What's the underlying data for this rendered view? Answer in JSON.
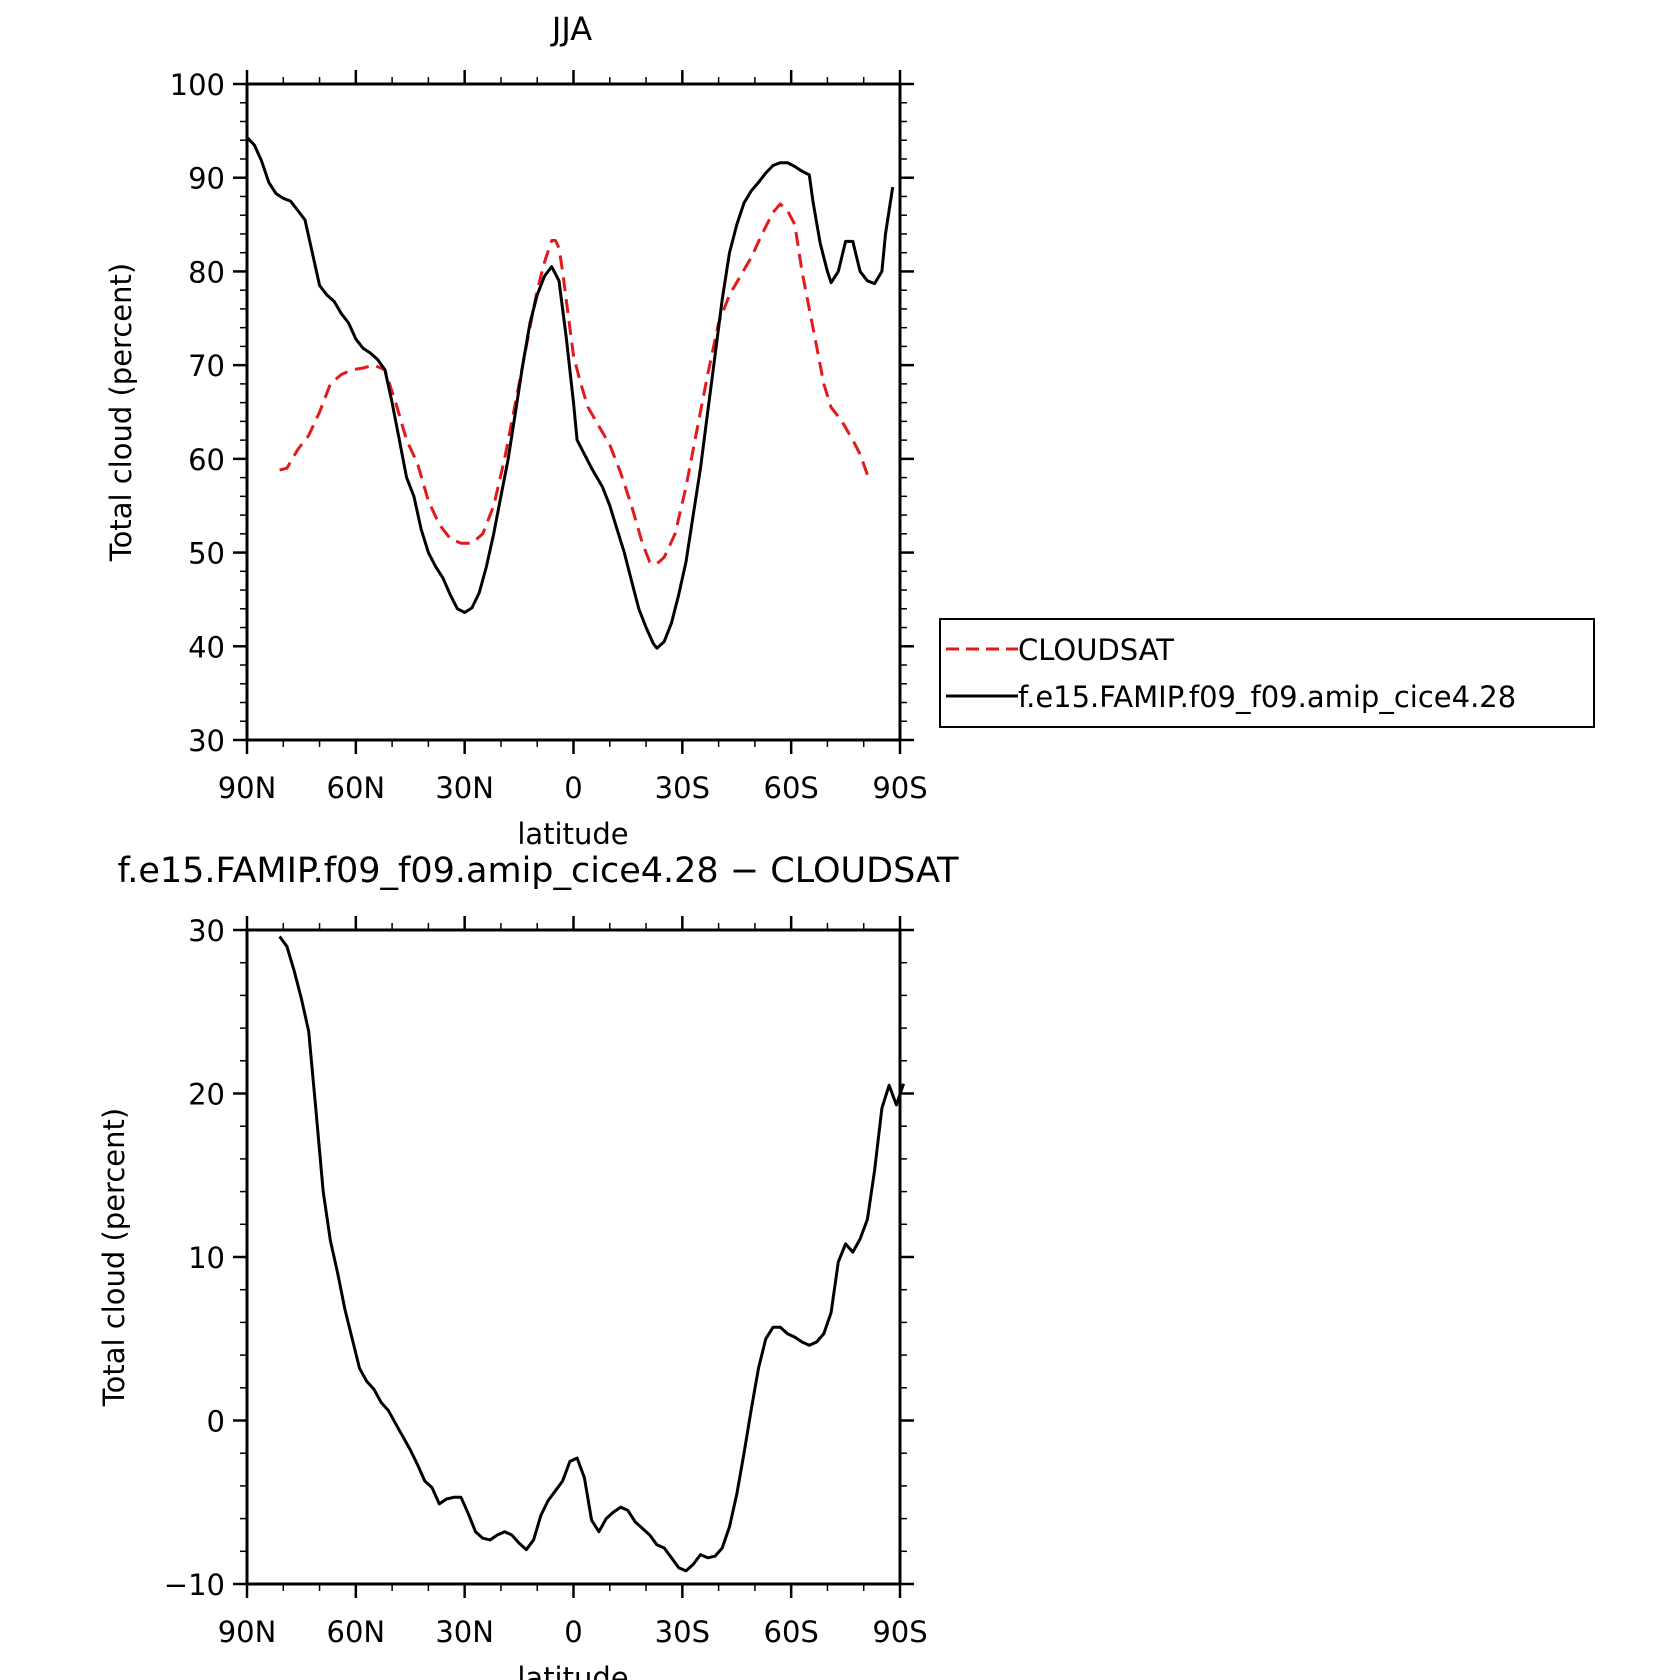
{
  "chart_data": [
    {
      "type": "line",
      "title": "JJA",
      "xlabel": "latitude",
      "ylabel": "Total cloud (percent)",
      "xlim": [
        90,
        -90
      ],
      "ylim": [
        30,
        100
      ],
      "xticks": [
        {
          "value": 90,
          "label": "90N"
        },
        {
          "value": 60,
          "label": "60N"
        },
        {
          "value": 30,
          "label": "30N"
        },
        {
          "value": 0,
          "label": "0"
        },
        {
          "value": -30,
          "label": "30S"
        },
        {
          "value": -60,
          "label": "60S"
        },
        {
          "value": -90,
          "label": "90S"
        }
      ],
      "yticks": [
        30,
        40,
        50,
        60,
        70,
        80,
        90,
        100
      ],
      "legend": {
        "placement": "right"
      },
      "series": [
        {
          "name": "CLOUDSAT",
          "color": "#e31a1c",
          "style": "dashed",
          "points": [
            [
              81,
              58.8
            ],
            [
              79,
              59
            ],
            [
              76,
              61
            ],
            [
              73,
              62.5
            ],
            [
              70,
              65
            ],
            [
              67,
              68
            ],
            [
              64,
              69
            ],
            [
              61,
              69.5
            ],
            [
              58,
              69.7
            ],
            [
              55,
              70
            ],
            [
              52,
              69.5
            ],
            [
              49,
              66
            ],
            [
              46,
              62
            ],
            [
              43,
              59.5
            ],
            [
              40,
              55.5
            ],
            [
              37,
              53
            ],
            [
              34,
              51.5
            ],
            [
              31,
              51
            ],
            [
              28,
              51
            ],
            [
              25,
              52
            ],
            [
              22,
              55
            ],
            [
              19,
              60
            ],
            [
              16,
              66
            ],
            [
              13,
              72
            ],
            [
              10,
              78
            ],
            [
              8,
              81
            ],
            [
              6,
              83.3
            ],
            [
              5,
              83.3
            ],
            [
              4,
              82.5
            ],
            [
              3,
              80
            ],
            [
              2,
              77
            ],
            [
              0,
              71
            ],
            [
              -2,
              68
            ],
            [
              -4,
              65.5
            ],
            [
              -7,
              63.5
            ],
            [
              -10,
              61.5
            ],
            [
              -13,
              58.5
            ],
            [
              -16,
              55
            ],
            [
              -19,
              51
            ],
            [
              -21,
              49
            ],
            [
              -23,
              48.8
            ],
            [
              -25,
              49.5
            ],
            [
              -28,
              52
            ],
            [
              -31,
              57
            ],
            [
              -34,
              63
            ],
            [
              -37,
              69
            ],
            [
              -40,
              74.5
            ],
            [
              -43,
              77.5
            ],
            [
              -46,
              79.5
            ],
            [
              -49,
              81.5
            ],
            [
              -52,
              84
            ],
            [
              -55,
              86.3
            ],
            [
              -57,
              87.2
            ],
            [
              -59,
              86.5
            ],
            [
              -61,
              85
            ],
            [
              -63,
              80
            ],
            [
              -65,
              76
            ],
            [
              -67,
              72
            ],
            [
              -69,
              68
            ],
            [
              -71,
              65.5
            ],
            [
              -74,
              64
            ],
            [
              -77,
              62
            ],
            [
              -79,
              60.5
            ],
            [
              -81,
              58.3
            ]
          ]
        },
        {
          "name": "f.e15.FAMIP.f09_f09.amip_cice4.28",
          "color": "#000000",
          "style": "solid",
          "points": [
            [
              90,
              94.3
            ],
            [
              88,
              93.5
            ],
            [
              86,
              91.8
            ],
            [
              84,
              89.5
            ],
            [
              82,
              88.3
            ],
            [
              80,
              87.8
            ],
            [
              78,
              87.5
            ],
            [
              76,
              86.5
            ],
            [
              74,
              85.5
            ],
            [
              72,
              82
            ],
            [
              70,
              78.5
            ],
            [
              68,
              77.5
            ],
            [
              66,
              76.8
            ],
            [
              64,
              75.5
            ],
            [
              62,
              74.5
            ],
            [
              60,
              72.8
            ],
            [
              58,
              71.8
            ],
            [
              56,
              71.3
            ],
            [
              54,
              70.6
            ],
            [
              52,
              69.5
            ],
            [
              50,
              66
            ],
            [
              48,
              62
            ],
            [
              46,
              58
            ],
            [
              44,
              56
            ],
            [
              42,
              52.5
            ],
            [
              40,
              50
            ],
            [
              38,
              48.5
            ],
            [
              36,
              47.3
            ],
            [
              34,
              45.5
            ],
            [
              32,
              44
            ],
            [
              30,
              43.6
            ],
            [
              28,
              44.1
            ],
            [
              26,
              45.7
            ],
            [
              24,
              48.5
            ],
            [
              22,
              52
            ],
            [
              20,
              56
            ],
            [
              18,
              60
            ],
            [
              16,
              65
            ],
            [
              14,
              70
            ],
            [
              12,
              74.5
            ],
            [
              10,
              77.5
            ],
            [
              8,
              79.5
            ],
            [
              6,
              80.5
            ],
            [
              4,
              79
            ],
            [
              2,
              73
            ],
            [
              0,
              66
            ],
            [
              -1,
              62
            ],
            [
              -3,
              60.5
            ],
            [
              -5,
              59
            ],
            [
              -8,
              57
            ],
            [
              -10,
              55
            ],
            [
              -12,
              52.5
            ],
            [
              -14,
              50
            ],
            [
              -16,
              47
            ],
            [
              -18,
              44
            ],
            [
              -20,
              42
            ],
            [
              -22,
              40.3
            ],
            [
              -23,
              39.8
            ],
            [
              -25,
              40.5
            ],
            [
              -27,
              42.5
            ],
            [
              -29,
              45.5
            ],
            [
              -31,
              49
            ],
            [
              -33,
              54
            ],
            [
              -35,
              59
            ],
            [
              -37,
              65
            ],
            [
              -39,
              71
            ],
            [
              -41,
              77
            ],
            [
              -43,
              82
            ],
            [
              -45,
              85
            ],
            [
              -47,
              87.3
            ],
            [
              -49,
              88.6
            ],
            [
              -51,
              89.5
            ],
            [
              -53,
              90.5
            ],
            [
              -55,
              91.3
            ],
            [
              -57,
              91.6
            ],
            [
              -59,
              91.6
            ],
            [
              -61,
              91.2
            ],
            [
              -63,
              90.7
            ],
            [
              -65,
              90.3
            ],
            [
              -66,
              87.5
            ],
            [
              -68,
              83
            ],
            [
              -70,
              80
            ],
            [
              -71,
              78.8
            ],
            [
              -73,
              80
            ],
            [
              -75,
              83.2
            ],
            [
              -77,
              83.2
            ],
            [
              -79,
              80
            ],
            [
              -81,
              79
            ],
            [
              -83,
              78.7
            ],
            [
              -85,
              80
            ],
            [
              -86,
              84
            ],
            [
              -88,
              89
            ]
          ]
        }
      ]
    },
    {
      "type": "line",
      "title": "f.e15.FAMIP.f09_f09.amip_cice4.28 − CLOUDSAT",
      "xlabel": "latitude",
      "ylabel": "Total cloud (percent)",
      "xlim": [
        90,
        -90
      ],
      "ylim": [
        -10,
        30
      ],
      "xticks": [
        {
          "value": 90,
          "label": "90N"
        },
        {
          "value": 60,
          "label": "60N"
        },
        {
          "value": 30,
          "label": "30N"
        },
        {
          "value": 0,
          "label": "0"
        },
        {
          "value": -30,
          "label": "30S"
        },
        {
          "value": -60,
          "label": "60S"
        },
        {
          "value": -90,
          "label": "90S"
        }
      ],
      "yticks": [
        -10,
        0,
        10,
        20,
        30
      ],
      "series": [
        {
          "color": "#000000",
          "style": "solid",
          "points": [
            [
              81,
              29.6
            ],
            [
              79,
              29
            ],
            [
              77,
              27.5
            ],
            [
              75,
              25.8
            ],
            [
              73,
              23.8
            ],
            [
              71,
              19
            ],
            [
              69,
              14
            ],
            [
              67,
              11
            ],
            [
              65,
              9
            ],
            [
              63,
              6.8
            ],
            [
              61,
              5
            ],
            [
              59,
              3.2
            ],
            [
              57,
              2.4
            ],
            [
              55,
              1.9
            ],
            [
              53,
              1.1
            ],
            [
              51,
              0.6
            ],
            [
              49,
              -0.2
            ],
            [
              47,
              -1
            ],
            [
              45,
              -1.8
            ],
            [
              43,
              -2.7
            ],
            [
              41,
              -3.7
            ],
            [
              39,
              -4.1
            ],
            [
              37,
              -5.1
            ],
            [
              35,
              -4.8
            ],
            [
              33,
              -4.7
            ],
            [
              31,
              -4.7
            ],
            [
              29,
              -5.7
            ],
            [
              27,
              -6.8
            ],
            [
              25,
              -7.2
            ],
            [
              23,
              -7.3
            ],
            [
              21,
              -7
            ],
            [
              19,
              -6.8
            ],
            [
              17,
              -7
            ],
            [
              15,
              -7.5
            ],
            [
              13,
              -7.9
            ],
            [
              11,
              -7.3
            ],
            [
              9,
              -5.8
            ],
            [
              7,
              -4.9
            ],
            [
              5,
              -4.3
            ],
            [
              3,
              -3.7
            ],
            [
              1,
              -2.5
            ],
            [
              -1,
              -2.3
            ],
            [
              -3,
              -3.5
            ],
            [
              -5,
              -6.1
            ],
            [
              -7,
              -6.8
            ],
            [
              -9,
              -6
            ],
            [
              -11,
              -5.6
            ],
            [
              -13,
              -5.3
            ],
            [
              -15,
              -5.5
            ],
            [
              -17,
              -6.2
            ],
            [
              -19,
              -6.6
            ],
            [
              -21,
              -7
            ],
            [
              -23,
              -7.6
            ],
            [
              -25,
              -7.8
            ],
            [
              -27,
              -8.4
            ],
            [
              -29,
              -9
            ],
            [
              -31,
              -9.2
            ],
            [
              -33,
              -8.8
            ],
            [
              -35,
              -8.2
            ],
            [
              -37,
              -8.4
            ],
            [
              -39,
              -8.3
            ],
            [
              -41,
              -7.8
            ],
            [
              -43,
              -6.5
            ],
            [
              -45,
              -4.5
            ],
            [
              -47,
              -2
            ],
            [
              -49,
              0.7
            ],
            [
              -51,
              3.2
            ],
            [
              -53,
              5
            ],
            [
              -55,
              5.7
            ],
            [
              -57,
              5.7
            ],
            [
              -59,
              5.3
            ],
            [
              -61,
              5.1
            ],
            [
              -63,
              4.8
            ],
            [
              -65,
              4.6
            ],
            [
              -67,
              4.8
            ],
            [
              -69,
              5.3
            ],
            [
              -71,
              6.6
            ],
            [
              -73,
              9.7
            ],
            [
              -75,
              10.8
            ],
            [
              -77,
              10.3
            ],
            [
              -79,
              11.1
            ],
            [
              -81,
              12.3
            ],
            [
              -83,
              15.3
            ],
            [
              -85,
              19.1
            ],
            [
              -87,
              20.5
            ],
            [
              -89,
              19.3
            ],
            [
              -91,
              20.6
            ]
          ]
        }
      ]
    }
  ]
}
